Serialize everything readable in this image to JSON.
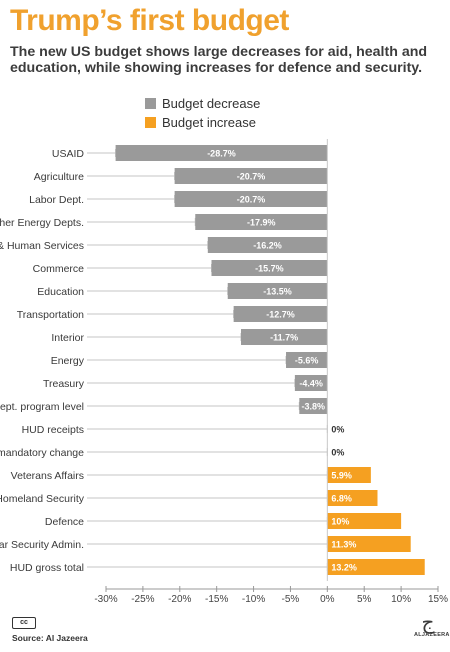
{
  "header": {
    "title": "Trump’s first budget",
    "subtitle": "The new US budget shows large decreases for aid, health and education, while showing increases for defence and security."
  },
  "legend": {
    "decrease_label": "Budget decrease",
    "increase_label": "Budget increase"
  },
  "footer": {
    "license_icon": "cc-by-icon",
    "license_text": "cc",
    "source": "Source: Al Jazeera",
    "logo_icon": "al-jazeera-logo-icon",
    "logo_glyph": "ج",
    "logo_word": "ALJAZEERA"
  },
  "colors": {
    "decrease": "#9a9a9a",
    "increase": "#f5a021",
    "title": "#f0a12e"
  },
  "chart_data": {
    "type": "bar",
    "orientation": "horizontal",
    "categories": [
      "USAID",
      "Agriculture",
      "Labor Dept.",
      "Other Energy Depts.",
      "Health & Human Services",
      "Commerce",
      "Education",
      "Transportation",
      "Interior",
      "Energy",
      "Treasury",
      "Justice Dept. program level",
      "HUD receipts",
      "Justice Dept. mandatory change",
      "Veterans Affairs",
      "Homeland Security",
      "Defence",
      "National Nuclear Security Admin.",
      "HUD gross total"
    ],
    "values": [
      -28.7,
      -20.7,
      -20.7,
      -17.9,
      -16.2,
      -15.7,
      -13.5,
      -12.7,
      -11.7,
      -5.6,
      -4.4,
      -3.8,
      0,
      0,
      5.9,
      6.8,
      10,
      11.3,
      13.2
    ],
    "data_labels": [
      "-28.7%",
      "-20.7%",
      "-20.7%",
      "-17.9%",
      "-16.2%",
      "-15.7%",
      "-13.5%",
      "-12.7%",
      "-11.7%",
      "-5.6%",
      "-4.4%",
      "-3.8%",
      "0%",
      "0%",
      "5.9%",
      "6.8%",
      "10%",
      "11.3%",
      "13.2%"
    ],
    "xlim": [
      -30,
      15
    ],
    "xticks": [
      -30,
      -25,
      -20,
      -15,
      -10,
      -5,
      0,
      5,
      10,
      15
    ],
    "xtick_labels": [
      "-30%",
      "-25%",
      "-20%",
      "-15%",
      "-10%",
      "-5%",
      "0%",
      "5%",
      "10%",
      "15%"
    ],
    "legend_position": "top-right",
    "grid": false
  }
}
